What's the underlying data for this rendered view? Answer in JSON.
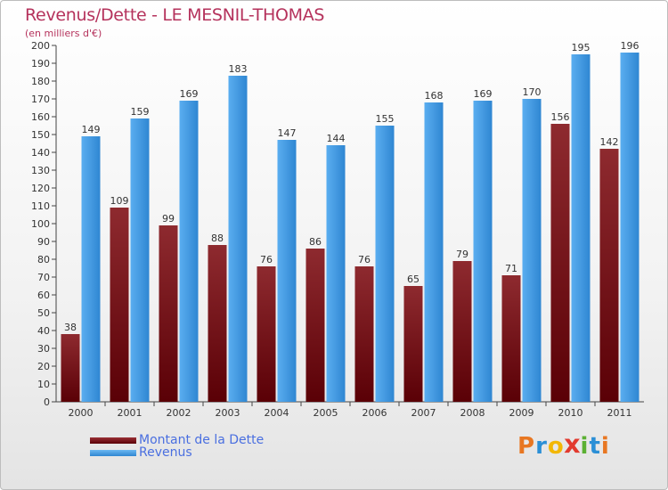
{
  "header": {
    "title": "Revenus/Dette - LE MESNIL-THOMAS",
    "subtitle": "(en milliers d'€)"
  },
  "legend": {
    "items": [
      {
        "label": "Montant de la Dette",
        "color": "#7a0f14"
      },
      {
        "label": "Revenus",
        "color": "#3e98e0"
      }
    ]
  },
  "logo": {
    "letters": [
      "P",
      "r",
      "o",
      "x",
      "i",
      "t",
      "i"
    ],
    "colors": [
      "#e87722",
      "#2b8fd6",
      "#f2b705",
      "#e23a2e",
      "#5bb033",
      "#2b8fd6",
      "#e87722"
    ]
  },
  "chart_data": {
    "type": "bar",
    "title": "Revenus/Dette - LE MESNIL-THOMAS",
    "subtitle": "(en milliers d'€)",
    "categories": [
      "2000",
      "2001",
      "2002",
      "2003",
      "2004",
      "2005",
      "2006",
      "2007",
      "2008",
      "2009",
      "2010",
      "2011"
    ],
    "series": [
      {
        "name": "Montant de la Dette",
        "color": "#7a0f14",
        "values": [
          38,
          109,
          99,
          88,
          76,
          86,
          76,
          65,
          79,
          71,
          156,
          142
        ]
      },
      {
        "name": "Revenus",
        "color": "#3e98e0",
        "values": [
          149,
          159,
          169,
          183,
          147,
          144,
          155,
          168,
          169,
          170,
          195,
          196
        ]
      }
    ],
    "yticks": [
      0,
      10,
      20,
      30,
      40,
      50,
      60,
      70,
      80,
      90,
      100,
      110,
      120,
      130,
      140,
      150,
      160,
      170,
      180,
      190,
      200
    ],
    "ylim": [
      0,
      200
    ],
    "grid": false,
    "legend_position": "bottom-left"
  }
}
